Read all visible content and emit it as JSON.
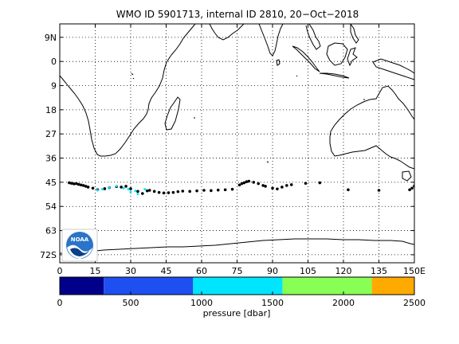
{
  "title": "WMO ID 5901713, internal ID 2810, 20−Oct−2018",
  "map": {
    "lat_labels": [
      "9N",
      "0",
      "9",
      "18",
      "27",
      "36",
      "45",
      "54",
      "63",
      "72S"
    ],
    "lat_values": [
      9,
      0,
      -9,
      -18,
      -27,
      -36,
      -45,
      -54,
      -63,
      -72
    ],
    "lon_labels": [
      "0",
      "15",
      "30",
      "45",
      "60",
      "75",
      "90",
      "105",
      "120",
      "135",
      "150E"
    ],
    "lon_values": [
      0,
      15,
      30,
      45,
      60,
      75,
      90,
      105,
      120,
      135,
      150
    ],
    "lon_range": [
      0,
      150
    ],
    "lat_range": [
      14,
      -75
    ],
    "grid": "dotted",
    "logo": {
      "text": "NOAA",
      "bg": "#2a74c9",
      "wave": "#0a3f8a"
    }
  },
  "colorbar": {
    "label": "pressure [dbar]",
    "ticks": [
      0,
      500,
      1000,
      1500,
      2000,
      2500
    ],
    "tick_labels": [
      "0",
      "500",
      "1000",
      "1500",
      "2000",
      "2500"
    ],
    "range": [
      0,
      2500
    ],
    "segments": [
      {
        "from": 0,
        "to": 310,
        "color": "#00008b"
      },
      {
        "from": 310,
        "to": 940,
        "color": "#1f4ff0"
      },
      {
        "from": 940,
        "to": 1570,
        "color": "#00e5ff"
      },
      {
        "from": 1570,
        "to": 2200,
        "color": "#88ff55"
      },
      {
        "from": 2200,
        "to": 2500,
        "color": "#ffaa00"
      }
    ]
  },
  "chart_data": {
    "type": "scatter",
    "title": "WMO ID 5901713, internal ID 2810, 20−Oct−2018",
    "xlabel": "",
    "ylabel": "",
    "xlim": [
      0,
      150
    ],
    "ylim": [
      -75,
      14
    ],
    "colorbar_label": "pressure [dbar]",
    "series": [
      {
        "color": "#000000",
        "x": [
          4,
          5,
          6,
          7,
          8,
          9,
          10,
          11,
          12,
          14,
          16,
          19,
          21,
          24,
          26,
          28,
          30,
          33,
          35,
          37,
          38,
          40,
          42,
          44,
          46,
          48,
          50,
          52,
          55,
          58,
          61,
          64,
          67,
          70,
          73,
          76,
          77,
          78,
          79,
          80,
          82,
          84,
          86,
          87,
          90,
          92,
          94,
          96,
          98,
          104,
          110,
          122,
          135,
          148,
          149,
          150
        ],
        "y": [
          -45.2,
          -45.4,
          -45.6,
          -45.5,
          -45.8,
          -46.0,
          -46.2,
          -46.5,
          -46.8,
          -47.2,
          -47.8,
          -47.4,
          -47.0,
          -46.6,
          -46.8,
          -46.5,
          -47.4,
          -48.4,
          -49.2,
          -48.2,
          -48.0,
          -48.4,
          -48.8,
          -49.0,
          -48.9,
          -48.8,
          -48.5,
          -48.3,
          -48.4,
          -48.2,
          -48.0,
          -48.1,
          -47.9,
          -47.8,
          -47.6,
          -46.0,
          -45.5,
          -45.2,
          -44.8,
          -44.6,
          -45.0,
          -45.5,
          -46.2,
          -46.5,
          -47.2,
          -47.5,
          -46.8,
          -46.2,
          -45.9,
          -45.4,
          -45.2,
          -47.8,
          -48.0,
          -47.8,
          -47.2,
          -46.4
        ]
      },
      {
        "color": "#00e5ff",
        "x": [
          16,
          18,
          21,
          24,
          27,
          29,
          30,
          32,
          33,
          36
        ],
        "y": [
          -48.0,
          -47.6,
          -47.0,
          -46.4,
          -47.2,
          -47.6,
          -48.6,
          -48.2,
          -49.4,
          -47.6
        ]
      }
    ]
  }
}
